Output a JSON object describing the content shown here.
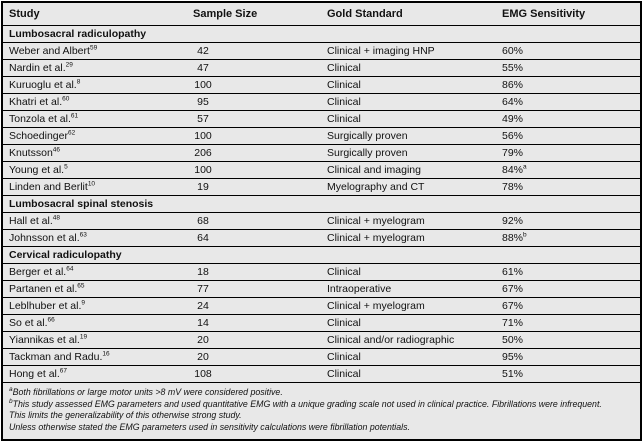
{
  "table": {
    "headers": [
      "Study",
      "Sample Size",
      "Gold Standard",
      "EMG Sensitivity"
    ],
    "sections": [
      {
        "title": "Lumbosacral radiculopathy",
        "rows": [
          {
            "study": "Weber and Albert",
            "ref": "59",
            "sample_size": "42",
            "gold_standard": "Clinical + imaging HNP",
            "emg_sensitivity": "60%",
            "emg_sup": ""
          },
          {
            "study": "Nardin et al.",
            "ref": "29",
            "sample_size": "47",
            "gold_standard": "Clinical",
            "emg_sensitivity": "55%",
            "emg_sup": ""
          },
          {
            "study": "Kuruoglu et al.",
            "ref": "8",
            "sample_size": "100",
            "gold_standard": "Clinical",
            "emg_sensitivity": "86%",
            "emg_sup": ""
          },
          {
            "study": "Khatri et al.",
            "ref": "60",
            "sample_size": "95",
            "gold_standard": "Clinical",
            "emg_sensitivity": "64%",
            "emg_sup": ""
          },
          {
            "study": "Tonzola et al.",
            "ref": "61",
            "sample_size": "57",
            "gold_standard": "Clinical",
            "emg_sensitivity": "49%",
            "emg_sup": ""
          },
          {
            "study": "Schoedinger",
            "ref": "62",
            "sample_size": "100",
            "gold_standard": "Surgically proven",
            "emg_sensitivity": "56%",
            "emg_sup": ""
          },
          {
            "study": "Knutsson",
            "ref": "46",
            "sample_size": "206",
            "gold_standard": "Surgically proven",
            "emg_sensitivity": "79%",
            "emg_sup": ""
          },
          {
            "study": "Young et al.",
            "ref": "5",
            "sample_size": "100",
            "gold_standard": "Clinical and imaging",
            "emg_sensitivity": "84%",
            "emg_sup": "a"
          },
          {
            "study": "Linden and Berlit",
            "ref": "10",
            "sample_size": "19",
            "gold_standard": "Myelography and CT",
            "emg_sensitivity": "78%",
            "emg_sup": ""
          }
        ]
      },
      {
        "title": "Lumbosacral spinal stenosis",
        "rows": [
          {
            "study": "Hall et al.",
            "ref": "48",
            "sample_size": "68",
            "gold_standard": "Clinical + myelogram",
            "emg_sensitivity": "92%",
            "emg_sup": ""
          },
          {
            "study": "Johnsson et al.",
            "ref": "63",
            "sample_size": "64",
            "gold_standard": "Clinical + myelogram",
            "emg_sensitivity": "88%",
            "emg_sup": "b"
          }
        ]
      },
      {
        "title": "Cervical radiculopathy",
        "rows": [
          {
            "study": "Berger et al.",
            "ref": "64",
            "sample_size": "18",
            "gold_standard": "Clinical",
            "emg_sensitivity": "61%",
            "emg_sup": ""
          },
          {
            "study": "Partanen et al.",
            "ref": "65",
            "sample_size": "77",
            "gold_standard": "Intraoperative",
            "emg_sensitivity": "67%",
            "emg_sup": ""
          },
          {
            "study": "Leblhuber et al.",
            "ref": "9",
            "sample_size": "24",
            "gold_standard": "Clinical + myelogram",
            "emg_sensitivity": "67%",
            "emg_sup": ""
          },
          {
            "study": "So et al.",
            "ref": "66",
            "sample_size": "14",
            "gold_standard": "Clinical",
            "emg_sensitivity": "71%",
            "emg_sup": ""
          },
          {
            "study": "Yiannikas et al.",
            "ref": "19",
            "sample_size": "20",
            "gold_standard": "Clinical and/or radiographic",
            "emg_sensitivity": "50%",
            "emg_sup": ""
          },
          {
            "study": "Tackman and Radu.",
            "ref": "16",
            "sample_size": "20",
            "gold_standard": "Clinical",
            "emg_sensitivity": "95%",
            "emg_sup": ""
          },
          {
            "study": "Hong et al.",
            "ref": "67",
            "sample_size": "108",
            "gold_standard": "Clinical",
            "emg_sensitivity": "51%",
            "emg_sup": ""
          }
        ]
      }
    ],
    "footnotes": [
      {
        "marker": "a",
        "text": "Both fibrillations or large motor units >8 mV were considered positive."
      },
      {
        "marker": "b",
        "text": "This study assessed EMG parameters and used quantitative EMG with a unique grading scale not used in clinical practice. Fibrillations were infrequent."
      },
      {
        "marker": "",
        "text": "This limits the generalizability of this otherwise strong study."
      },
      {
        "marker": "",
        "text": "Unless otherwise stated the EMG parameters used in sensitivity calculations were fibrillation potentials."
      }
    ]
  },
  "colors": {
    "row_bg": "#e8e8e8",
    "border": "#000000",
    "text": "#111111"
  }
}
